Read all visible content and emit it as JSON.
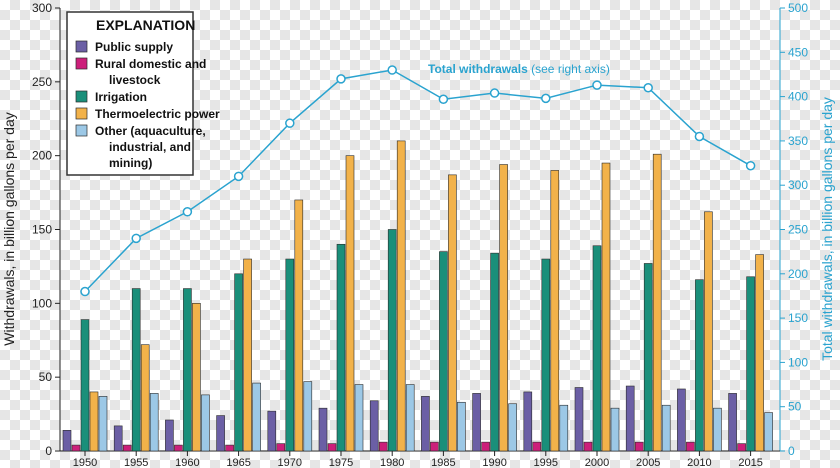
{
  "chart_data": {
    "type": "bar",
    "title": "",
    "xlabel": "",
    "ylabel": "Withdrawals, in billion gallons per day",
    "y2label": "Total withdrawals, in billion gallons per day",
    "ylim": [
      0,
      300
    ],
    "y2lim": [
      0,
      500
    ],
    "yticks": [
      "0",
      "50",
      "100",
      "150",
      "200",
      "250",
      "300"
    ],
    "y2ticks": [
      "0",
      "50",
      "100",
      "150",
      "200",
      "250",
      "300",
      "350",
      "400",
      "450",
      "500"
    ],
    "categories": [
      "1950",
      "1955",
      "1960",
      "1965",
      "1970",
      "1975",
      "1980",
      "1985",
      "1990",
      "1995",
      "2000",
      "2005",
      "2010",
      "2015"
    ],
    "legend": {
      "title": "EXPLANATION",
      "position": "top-left"
    },
    "series": [
      {
        "name": "Public supply",
        "legend_lines": [
          "Public supply"
        ],
        "color": "#6b5fa5",
        "values": [
          14,
          17,
          21,
          24,
          27,
          29,
          34,
          37,
          39,
          40,
          43,
          44,
          42,
          39
        ]
      },
      {
        "name": "Rural domestic and livestock",
        "legend_lines": [
          "Rural domestic and",
          "livestock"
        ],
        "color": "#cc1f7a",
        "values": [
          4,
          4,
          4,
          4,
          5,
          5,
          6,
          6,
          6,
          6,
          6,
          6,
          6,
          5
        ]
      },
      {
        "name": "Irrigation",
        "legend_lines": [
          "Irrigation"
        ],
        "color": "#1a8f7a",
        "values": [
          89,
          110,
          110,
          120,
          130,
          140,
          150,
          135,
          134,
          130,
          139,
          127,
          116,
          118
        ]
      },
      {
        "name": "Thermoelectric power",
        "legend_lines": [
          "Thermoelectric power"
        ],
        "color": "#f2b24a",
        "values": [
          40,
          72,
          100,
          130,
          170,
          200,
          210,
          187,
          194,
          190,
          195,
          201,
          162,
          133
        ]
      },
      {
        "name": "Other (aquaculture, industrial, and mining)",
        "legend_lines": [
          "Other (aquaculture,",
          "industrial, and",
          "mining)"
        ],
        "color": "#9cc8e6",
        "values": [
          37,
          39,
          38,
          46,
          47,
          45,
          45,
          33,
          32,
          31,
          29,
          31,
          29,
          26
        ]
      }
    ],
    "line": {
      "name": "Total withdrawals",
      "label_bold": "Total withdrawals",
      "label_note": "(see right axis)",
      "axis": "right",
      "color": "#2aa3cf",
      "values": [
        180,
        240,
        270,
        310,
        370,
        420,
        430,
        397,
        404,
        398,
        413,
        410,
        355,
        322
      ]
    },
    "grid": false
  }
}
